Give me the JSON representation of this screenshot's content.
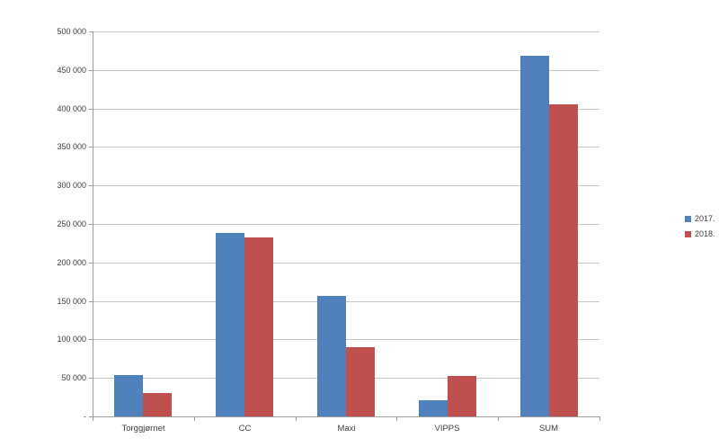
{
  "chart_data": {
    "type": "bar",
    "title": "",
    "xlabel": "",
    "ylabel": "",
    "categories": [
      "Torggjørnet",
      "CC",
      "Maxi",
      "VIPPS",
      "SUM"
    ],
    "series": [
      {
        "name": "2017.",
        "color": "#4F81BD",
        "values": [
          54000,
          238000,
          156000,
          21000,
          469000
        ]
      },
      {
        "name": "2018.",
        "color": "#C0504D",
        "values": [
          30000,
          232000,
          90000,
          53000,
          405000
        ]
      }
    ],
    "ylim": [
      0,
      500000
    ],
    "ytick_step": 50000,
    "ytick_zero_label": "-",
    "thousands_separator": " ",
    "grid": true,
    "legend_position": "right"
  },
  "colors": {
    "series_2017": "#4F81BD",
    "series_2018": "#C0504D",
    "gridline": "#C6C6C6",
    "axis": "#9E9E9E",
    "text": "#404040",
    "background": "#FFFFFF"
  }
}
